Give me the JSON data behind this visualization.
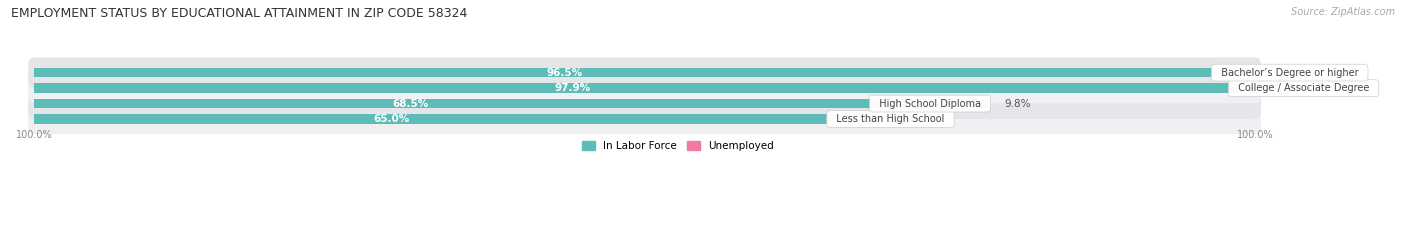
{
  "title": "EMPLOYMENT STATUS BY EDUCATIONAL ATTAINMENT IN ZIP CODE 58324",
  "source": "Source: ZipAtlas.com",
  "categories": [
    "Less than High School",
    "High School Diploma",
    "College / Associate Degree",
    "Bachelor’s Degree or higher"
  ],
  "labor_force": [
    65.0,
    68.5,
    97.9,
    96.5
  ],
  "unemployed": [
    0.0,
    9.8,
    0.9,
    0.0
  ],
  "labor_force_color": "#5bbcb8",
  "unemployed_color": "#f07aa0",
  "row_bg_color_odd": "#f0f0f2",
  "row_bg_color_even": "#e5e5ea",
  "x_axis_left_label": "100.0%",
  "x_axis_right_label": "100.0%",
  "legend_labor_force": "In Labor Force",
  "legend_unemployed": "Unemployed",
  "title_fontsize": 9,
  "source_fontsize": 7,
  "bar_label_fontsize": 7.5,
  "category_fontsize": 7,
  "axis_label_fontsize": 7,
  "max_value": 100.0,
  "figsize": [
    14.06,
    2.33
  ],
  "dpi": 100
}
